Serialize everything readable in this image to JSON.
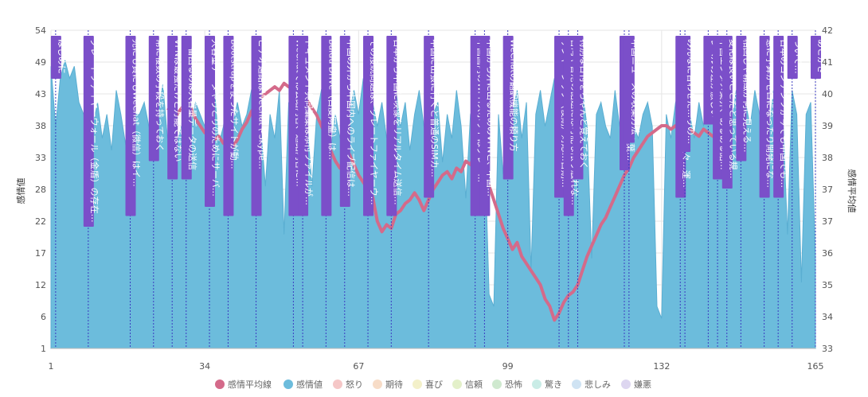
{
  "chart_data": {
    "type": "area",
    "ylabel": "感情値",
    "y2label": "感情平均値",
    "xticks": [
      "1",
      "34",
      "67",
      "99",
      "132",
      "165"
    ],
    "yticks": [
      "1",
      "6",
      "12",
      "17",
      "22",
      "28",
      "33",
      "38",
      "43",
      "49",
      "54"
    ],
    "y2ticks": [
      "33",
      "34",
      "35",
      "36",
      "37",
      "37",
      "38",
      "39",
      "40",
      "41",
      "42"
    ],
    "xlim": [
      1,
      165
    ],
    "ylim": [
      1,
      54
    ],
    "y2lim": [
      33,
      42
    ],
    "grid": true,
    "legend_position": "bottom",
    "colors": {
      "area": "#6cbcdc",
      "avg_line": "#d46a8a",
      "annotation_box": "#7b4fc9",
      "annotation_line": "#3b3bc0",
      "grid": "#e6e6e6"
    },
    "legend": [
      {
        "label": "感情平均線",
        "color": "#d46a8a"
      },
      {
        "label": "感情値",
        "color": "#6cbcdc"
      },
      {
        "label": "怒り",
        "color": "#f5c7c7"
      },
      {
        "label": "期待",
        "color": "#f7dcc7"
      },
      {
        "label": "喜び",
        "color": "#f3f0c9"
      },
      {
        "label": "信頼",
        "color": "#e3f0c9"
      },
      {
        "label": "恐怖",
        "color": "#cfe9cf"
      },
      {
        "label": "驚き",
        "color": "#c9ece6"
      },
      {
        "label": "悲しみ",
        "color": "#cfe3f3"
      },
      {
        "label": "嫌悪",
        "color": "#ddd6f0"
      }
    ],
    "series": [
      {
        "name": "感情値",
        "x": [
          1,
          2,
          3,
          4,
          5,
          6,
          7,
          8,
          9,
          10,
          11,
          12,
          13,
          14,
          15,
          16,
          17,
          18,
          19,
          20,
          21,
          22,
          23,
          24,
          25,
          26,
          27,
          28,
          29,
          30,
          31,
          32,
          33,
          34,
          35,
          36,
          37,
          38,
          39,
          40,
          41,
          42,
          43,
          44,
          45,
          46,
          47,
          48,
          49,
          50,
          51,
          52,
          53,
          54,
          55,
          56,
          57,
          58,
          59,
          60,
          61,
          62,
          63,
          64,
          65,
          66,
          67,
          68,
          69,
          70,
          71,
          72,
          73,
          74,
          75,
          76,
          77,
          78,
          79,
          80,
          81,
          82,
          83,
          84,
          85,
          86,
          87,
          88,
          89,
          90,
          91,
          92,
          93,
          94,
          95,
          96,
          97,
          98,
          99,
          100,
          101,
          102,
          103,
          104,
          105,
          106,
          107,
          108,
          109,
          110,
          111,
          112,
          113,
          114,
          115,
          116,
          117,
          118,
          119,
          120,
          121,
          122,
          123,
          124,
          125,
          126,
          127,
          128,
          129,
          130,
          131,
          132,
          133,
          134,
          135,
          136,
          137,
          138,
          139,
          140,
          141,
          142,
          143,
          144,
          145,
          146,
          147,
          148,
          149,
          150,
          151,
          152,
          153,
          154,
          155,
          156,
          157,
          158,
          159,
          160,
          161,
          162,
          163,
          164,
          165
        ],
        "values": [
          48,
          38,
          46,
          49,
          46,
          48,
          42,
          40,
          39,
          38,
          42,
          36,
          40,
          34,
          44,
          40,
          35,
          33,
          40,
          40,
          42,
          38,
          36,
          40,
          45,
          36,
          42,
          35,
          38,
          45,
          38,
          42,
          40,
          38,
          44,
          45,
          35,
          38,
          45,
          38,
          42,
          38,
          40,
          44,
          42,
          38,
          28,
          40,
          36,
          44,
          20,
          42,
          40,
          44,
          40,
          38,
          28,
          40,
          44,
          42,
          34,
          40,
          36,
          44,
          40,
          44,
          40,
          46,
          34,
          42,
          38,
          42,
          36,
          40,
          44,
          38,
          42,
          34,
          40,
          44,
          38,
          36,
          40,
          42,
          32,
          40,
          36,
          44,
          38,
          26,
          40,
          42,
          38,
          36,
          10,
          8,
          40,
          30,
          44,
          40,
          44,
          36,
          42,
          14,
          40,
          44,
          38,
          42,
          46,
          38,
          42,
          28,
          40,
          42,
          44,
          38,
          16,
          40,
          42,
          38,
          36,
          44,
          38,
          40,
          42,
          38,
          36,
          40,
          42,
          38,
          8,
          6,
          40,
          36,
          42,
          44,
          38,
          40,
          36,
          42,
          38,
          44,
          40,
          36,
          42,
          40,
          38,
          44,
          40,
          42,
          38,
          44,
          40,
          38,
          36,
          44,
          42,
          40,
          20,
          44,
          40,
          12,
          40,
          42,
          16
        ]
      },
      {
        "name": "感情平均線",
        "axis": "y2",
        "x": [
          26,
          27,
          28,
          29,
          30,
          31,
          32,
          33,
          34,
          35,
          36,
          37,
          38,
          39,
          40,
          41,
          42,
          43,
          44,
          45,
          46,
          47,
          48,
          49,
          50,
          51,
          52,
          53,
          54,
          55,
          56,
          57,
          58,
          59,
          60,
          61,
          62,
          63,
          64,
          65,
          66,
          67,
          68,
          69,
          70,
          71,
          72,
          73,
          74,
          75,
          76,
          77,
          78,
          79,
          80,
          81,
          82,
          83,
          84,
          85,
          86,
          87,
          88,
          89,
          90,
          91,
          92,
          93,
          94,
          95,
          96,
          97,
          98,
          99,
          100,
          101,
          102,
          103,
          104,
          105,
          106,
          107,
          108,
          109,
          110,
          111,
          112,
          113,
          114,
          115,
          116,
          117,
          118,
          119,
          120,
          121,
          122,
          123,
          124,
          125,
          126,
          127,
          128,
          129,
          130,
          131,
          132,
          133,
          134,
          135,
          136,
          137,
          138,
          139,
          140,
          141,
          142,
          143,
          144,
          145
        ],
        "values": [
          39.8,
          39.7,
          39.6,
          39.8,
          39.7,
          39.8,
          39.5,
          39.3,
          39.1,
          39.2,
          38.9,
          39.0,
          38.8,
          38.9,
          38.7,
          38.9,
          39.2,
          39.4,
          39.7,
          39.9,
          40.1,
          40.2,
          40.3,
          40.4,
          40.3,
          40.5,
          40.4,
          40.5,
          40.3,
          40.2,
          40.0,
          39.8,
          39.6,
          39.3,
          39.0,
          38.6,
          38.3,
          38.1,
          38.4,
          38.5,
          38.2,
          37.9,
          37.7,
          37.5,
          37.3,
          36.6,
          36.3,
          36.5,
          36.4,
          36.8,
          36.9,
          37.1,
          37.2,
          37.4,
          37.2,
          36.9,
          37.2,
          37.5,
          37.7,
          37.9,
          38.0,
          37.8,
          38.1,
          38.0,
          38.3,
          38.2,
          38.5,
          38.3,
          38.0,
          37.6,
          37.2,
          36.8,
          36.4,
          36.1,
          35.8,
          36.0,
          35.6,
          35.4,
          35.2,
          35.0,
          34.8,
          34.4,
          34.2,
          33.8,
          34.0,
          34.3,
          34.5,
          34.6,
          34.8,
          35.2,
          35.6,
          35.9,
          36.2,
          36.5,
          36.7,
          37.0,
          37.3,
          37.6,
          37.9,
          38.1,
          38.4,
          38.6,
          38.8,
          39.0,
          39.1,
          39.2,
          39.3,
          39.3,
          39.2,
          39.3,
          39.1,
          39.0,
          39.2,
          39.1,
          39.0,
          39.2,
          39.1,
          39.0,
          39.1,
          39.2
        ]
      }
    ],
    "annotations": [
      {
        "x": 2,
        "label": "はじめに"
      },
      {
        "x": 9,
        "label": "グレートファイヤーウォール（金盾）の存在…"
      },
      {
        "x": 18,
        "label": "売にも負にもWeChat（微信）はイ…"
      },
      {
        "x": 23,
        "label": "常に複数の手段を持っておく"
      },
      {
        "x": 27,
        "label": "VPNは最強だけど万能ではない"
      },
      {
        "x": 30,
        "label": "一番困るのは大容量データの送信"
      },
      {
        "x": 35,
        "label": "大容量データやりとりのためにサーバ…"
      },
      {
        "x": 39,
        "label": "Bootstrapを使ったサイトが動…"
      },
      {
        "x": 45,
        "label": "ビデオ通話はWeChatやSkype…"
      },
      {
        "x": 53,
        "label": "WeChatでは会話内容、通話内容に…"
      },
      {
        "x": 55,
        "label": "ドキュメント共同編集は添付ファイルが…"
      },
      {
        "x": 60,
        "label": "Baidu Drive（百度网盘）は…"
      },
      {
        "x": 64,
        "label": "中国の外から中国内へのライブ配信は…"
      },
      {
        "x": 69,
        "label": "その接続問題は、グレートファイヤーウ…"
      },
      {
        "x": 74,
        "label": "日本から中国に映像をリアルタイム送信…"
      },
      {
        "x": 82,
        "label": "中国に出張に行くと普通のSIMカ…"
      },
      {
        "x": 92,
        "label": "中国国内のWi-Fiスポットはグレー…"
      },
      {
        "x": 94,
        "label": "中国から外に出るためのVPNと、中国…"
      },
      {
        "x": 99,
        "label": "WeChatの翻訳機能の頼り方"
      },
      {
        "x": 110,
        "label": "サンヤーシップ（後期）対応…日期…"
      },
      {
        "x": 112,
        "label": "台湾や香港の話題には可能な限り触れな…"
      },
      {
        "x": 114,
        "label": "特別な日付をちゃんと覚えておく"
      },
      {
        "x": 124,
        "label": "中国に行ってお金と和製言葉…"
      },
      {
        "x": 125,
        "label": "中国ニュースの収集方法"
      },
      {
        "x": 136,
        "label": "アルファベットを読めない人々…運…"
      },
      {
        "x": 137,
        "label": "みんなに合わせた…りの…"
      },
      {
        "x": 142,
        "label": "レベルの差が激しい"
      },
      {
        "x": 144,
        "label": "中国エンタメ業界、あるある話…"
      },
      {
        "x": 146,
        "label": "変化は良いことだと思っている規…"
      },
      {
        "x": 149,
        "label": "相回しや精緻が何に見える…"
      },
      {
        "x": 154,
        "label": "急に予算がゼロになったり開発にな…"
      },
      {
        "x": 157,
        "label": "日本のコンテンツが今でも中国でも…"
      },
      {
        "x": 160,
        "label": "ついて…"
      },
      {
        "x": 165,
        "label": "あとがき"
      }
    ]
  }
}
